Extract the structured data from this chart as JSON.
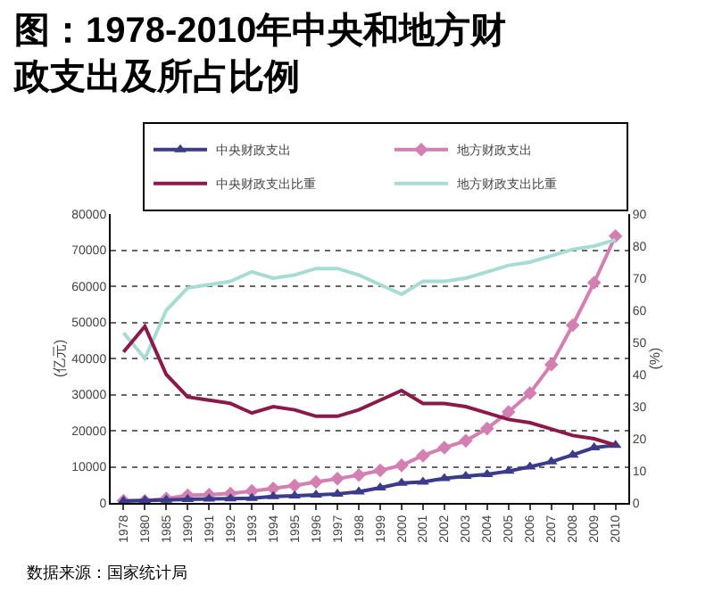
{
  "chart_data": {
    "type": "line",
    "title": "图：1978-2010年中央和地方财政支出及所占比例",
    "ylabel": "(亿元)",
    "y2label": "(%)",
    "categories": [
      "1978",
      "1980",
      "1985",
      "1990",
      "1991",
      "1992",
      "1993",
      "1994",
      "1995",
      "1996",
      "1997",
      "1998",
      "1999",
      "2000",
      "2001",
      "2002",
      "2003",
      "2004",
      "2005",
      "2006",
      "2007",
      "2008",
      "2009",
      "2010"
    ],
    "series": [
      {
        "name": "中央财政支出",
        "color": "#3b3b8c",
        "marker": "triangle",
        "values": [
          500,
          700,
          800,
          1000,
          1100,
          1200,
          1300,
          1800,
          2000,
          2200,
          2500,
          3100,
          4200,
          5500,
          5800,
          6800,
          7400,
          7900,
          8800,
          10000,
          11400,
          13300,
          15300,
          16000
        ]
      },
      {
        "name": "地方财政支出",
        "color": "#d47fb2",
        "marker": "diamond",
        "values": [
          600,
          600,
          1200,
          2100,
          2300,
          2600,
          3300,
          4000,
          4800,
          5800,
          6700,
          7700,
          9000,
          10400,
          13100,
          15300,
          17200,
          20600,
          25200,
          30400,
          38300,
          49200,
          61000,
          73900
        ]
      },
      {
        "name": "中央财政支出比重",
        "color": "#8b1a4a",
        "marker": "none",
        "axis": "y2",
        "values": [
          47,
          55,
          40,
          33,
          32,
          31,
          28,
          30,
          29,
          27,
          27,
          29,
          32,
          35,
          31,
          31,
          30,
          28,
          26,
          25,
          23,
          21,
          20,
          18
        ]
      },
      {
        "name": "地方财政支出比重",
        "color": "#a6dcd3",
        "marker": "none",
        "axis": "y2",
        "values": [
          53,
          45,
          60,
          67,
          68,
          69,
          72,
          70,
          71,
          73,
          73,
          71,
          68,
          65,
          69,
          69,
          70,
          72,
          74,
          75,
          77,
          79,
          80,
          82
        ]
      }
    ],
    "ylim": [
      0,
      80000
    ],
    "yticks": [
      0,
      10000,
      20000,
      30000,
      40000,
      50000,
      60000,
      70000,
      80000
    ],
    "y2lim": [
      0,
      90
    ],
    "y2ticks": [
      0,
      10,
      20,
      30,
      40,
      50,
      60,
      70,
      80,
      90
    ],
    "grid": "y",
    "legend": "top",
    "line_style": "solid",
    "annotations": [
      "数据来源：国家统计局"
    ]
  }
}
